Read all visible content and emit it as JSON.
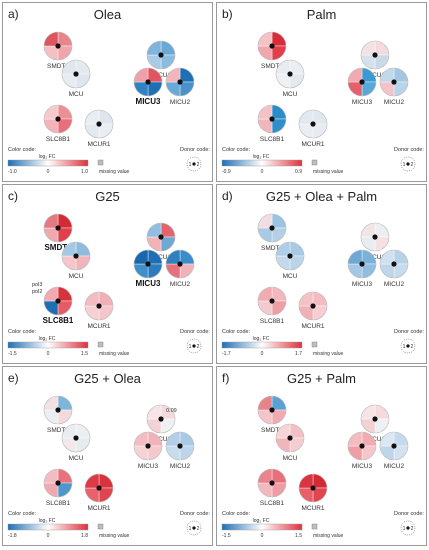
{
  "colors": {
    "red": "#e0303c",
    "blue": "#1f6fb4",
    "frame": "#9a9a9a"
  },
  "legend_text": {
    "color_code": "Color code:",
    "log2fc": "log₂ FC",
    "missing": "missing value",
    "donor_code": "Donor code:"
  },
  "panels": [
    {
      "letter": "a)",
      "title": "Olea",
      "scale": [
        "-1.0",
        "0",
        "1.0"
      ],
      "donor_labels": [
        "1",
        "2"
      ],
      "nodes": [
        {
          "name": "SMDT1",
          "bold": false,
          "colors": [
            "#e9868c",
            "#f0a5ab",
            "#f5c0c4",
            "#dd5560"
          ],
          "annotations": []
        },
        {
          "name": "MCU",
          "bold": false,
          "colors": [
            "#e3e9ef",
            "#dde5ee",
            "#e6ecf2",
            "#e0e7ef"
          ],
          "annotations": []
        },
        {
          "name": "MICU1",
          "bold": false,
          "colors": [
            "#6aa9d6",
            "#8bbbde",
            "#a9cbe6",
            "#7fb4db"
          ],
          "annotations": []
        },
        {
          "name": "MICU3",
          "bold": true,
          "colors": [
            "#e05560",
            "#1f6fb4",
            "#2f82c4",
            "#f0a0a8"
          ],
          "annotations": []
        },
        {
          "name": "MICU2",
          "bold": false,
          "colors": [
            "#1f6fb4",
            "#4a92cc",
            "#6aa9d6",
            "#f3b4bb"
          ],
          "annotations": []
        },
        {
          "name": "SLC8B1",
          "bold": false,
          "colors": [
            "#ed8f97",
            "#e9707a",
            "#f3b3b9",
            "#f6c9cd"
          ],
          "annotations": []
        },
        {
          "name": "MCUR1",
          "bold": false,
          "colors": [
            "#dde6ef",
            "#e9eef3",
            "#e3e9f0",
            "#e8eef4"
          ],
          "annotations": []
        }
      ]
    },
    {
      "letter": "b)",
      "title": "Palm",
      "scale": [
        "-0.9",
        "0",
        "0.9"
      ],
      "donor_labels": [
        "1",
        "2"
      ],
      "nodes": [
        {
          "name": "SMDT1",
          "bold": false,
          "colors": [
            "#d82d38",
            "#e23f4a",
            "#f2a6ad",
            "#f5c2c6"
          ],
          "annotations": []
        },
        {
          "name": "MCU",
          "bold": false,
          "colors": [
            "#e9eef3",
            "#e3e9f0",
            "#eef1f4",
            "#e6ecf2"
          ],
          "annotations": []
        },
        {
          "name": "MICU1",
          "bold": false,
          "colors": [
            "#f5dadd",
            "#c9d9e8",
            "#d5e2ee",
            "#f2e2e4"
          ],
          "annotations": []
        },
        {
          "name": "MICU3",
          "bold": false,
          "colors": [
            "#3c9ad0",
            "#55a8d8",
            "#e5606a",
            "#f2aab0"
          ],
          "annotations": []
        },
        {
          "name": "MICU2",
          "bold": false,
          "colors": [
            "#a5c6e2",
            "#b9d3e8",
            "#f3c3c8",
            "#c2d8eb"
          ],
          "annotations": []
        },
        {
          "name": "SLC8B1",
          "bold": false,
          "colors": [
            "#2a8cc8",
            "#2f8fca",
            "#f0b6bc",
            "#f3c2c7"
          ],
          "annotations": []
        },
        {
          "name": "MCUR1",
          "bold": false,
          "colors": [
            "#dfe7ef",
            "#e6ecf2",
            "#eaeef3",
            "#e2e9f0"
          ],
          "annotations": []
        }
      ]
    },
    {
      "letter": "c)",
      "title": "G25",
      "scale": [
        "-1.5",
        "0",
        "1.5"
      ],
      "donor_labels": [
        "1",
        "2"
      ],
      "nodes": [
        {
          "name": "SMDT1",
          "bold": true,
          "colors": [
            "#d42a35",
            "#e0404b",
            "#f1a9b0",
            "#e27a83"
          ],
          "annotations": []
        },
        {
          "name": "MCU",
          "bold": false,
          "colors": [
            "#8fbbde",
            "#f0b4ba",
            "#f4c6ca",
            "#a5c9e4"
          ],
          "annotations": []
        },
        {
          "name": "MICU1",
          "bold": false,
          "colors": [
            "#e5636d",
            "#6ea8d4",
            "#f2b2b8",
            "#92bde0"
          ],
          "annotations": []
        },
        {
          "name": "MICU3",
          "bold": true,
          "colors": [
            "#1f6fb4",
            "#2a7cbd",
            "#3e8fca",
            "#1a67ad"
          ],
          "annotations": []
        },
        {
          "name": "MICU2",
          "bold": false,
          "colors": [
            "#3a8ccc",
            "#f0b3b9",
            "#e5727b",
            "#2f7fc1"
          ],
          "annotations": []
        },
        {
          "name": "SLC8B1",
          "bold": true,
          "colors": [
            "#d8323d",
            "#e45c66",
            "#1f6fb4",
            "#f2a9b0"
          ],
          "annotations": [
            "pol3",
            "pol2"
          ]
        },
        {
          "name": "MCUR1",
          "bold": false,
          "colors": [
            "#f0b0b6",
            "#f4c5ca",
            "#f6d0d3",
            "#f2bcc1"
          ],
          "annotations": []
        }
      ]
    },
    {
      "letter": "d)",
      "title": "G25 + Olea + Palm",
      "scale": [
        "-1.7",
        "0",
        "1.7"
      ],
      "donor_labels": [
        "1",
        "2"
      ],
      "nodes": [
        {
          "name": "SMDT1",
          "bold": false,
          "colors": [
            "#9cc3e2",
            "#b4d0e8",
            "#a8cae5",
            "#f2dde0"
          ],
          "annotations": []
        },
        {
          "name": "MCU",
          "bold": false,
          "colors": [
            "#a9cae5",
            "#bad4ea",
            "#c4daec",
            "#b0cde7"
          ],
          "annotations": []
        },
        {
          "name": "MICU1",
          "bold": false,
          "colors": [
            "#eceff2",
            "#f5e0e2",
            "#e8edf2",
            "#f0e6e8"
          ],
          "annotations": []
        },
        {
          "name": "MICU3",
          "bold": false,
          "colors": [
            "#7bb2da",
            "#8fbddf",
            "#a4c8e4",
            "#6ea9d5"
          ],
          "annotations": []
        },
        {
          "name": "MICU2",
          "bold": false,
          "colors": [
            "#b6d1e8",
            "#c6dbec",
            "#bed6ea",
            "#cfe0ee"
          ],
          "annotations": []
        },
        {
          "name": "SLC8B1",
          "bold": false,
          "colors": [
            "#f2b8bd",
            "#ee9ea5",
            "#f5cacd",
            "#f0acb2"
          ],
          "annotations": []
        },
        {
          "name": "MCUR1",
          "bold": false,
          "colors": [
            "#f3bcc1",
            "#f6cdd0",
            "#f0b0b6",
            "#f4c2c6"
          ],
          "annotations": []
        }
      ]
    },
    {
      "letter": "e)",
      "title": "G25 + Olea",
      "scale": [
        "-1.8",
        "0",
        "1.8"
      ],
      "donor_labels": [
        "1",
        "2"
      ],
      "nodes": [
        {
          "name": "SMDT1",
          "bold": false,
          "colors": [
            "#7fb4db",
            "#f5dadd",
            "#eaeef3",
            "#f2e1e3"
          ],
          "annotations": []
        },
        {
          "name": "MCU",
          "bold": false,
          "colors": [
            "#eceff2",
            "#e6ebf0",
            "#f2e8ea",
            "#e9edf2"
          ],
          "annotations": []
        },
        {
          "name": "MICU1",
          "bold": false,
          "colors": [
            "#f5dadd",
            "#eef1f4",
            "#f3d2d5",
            "#f7e4e6"
          ],
          "annotations": [
            "0.09"
          ]
        },
        {
          "name": "MICU3",
          "bold": false,
          "colors": [
            "#f1b3b9",
            "#f4c8cc",
            "#f6d2d5",
            "#f3bec3"
          ],
          "annotations": []
        },
        {
          "name": "MICU2",
          "bold": false,
          "colors": [
            "#a9cae5",
            "#bcd5ea",
            "#c7dcec",
            "#b3cfe7"
          ],
          "annotations": []
        },
        {
          "name": "SLC8B1",
          "bold": false,
          "colors": [
            "#e8727b",
            "#4e96cd",
            "#f0a9b0",
            "#f3bcc1"
          ],
          "annotations": []
        },
        {
          "name": "MCUR1",
          "bold": false,
          "colors": [
            "#d8323d",
            "#e0444f",
            "#e7626c",
            "#dc3a45"
          ],
          "annotations": []
        }
      ]
    },
    {
      "letter": "f)",
      "title": "G25 + Palm",
      "scale": [
        "-1.5",
        "0",
        "1.5"
      ],
      "donor_labels": [
        "1",
        "2"
      ],
      "nodes": [
        {
          "name": "SMDT1",
          "bold": false,
          "colors": [
            "#5aa0d2",
            "#f0aab0",
            "#f4c4c8",
            "#e6838b"
          ],
          "annotations": []
        },
        {
          "name": "MCU",
          "bold": false,
          "colors": [
            "#f3c0c5",
            "#f5cdd0",
            "#f1b6bc",
            "#f6d4d7"
          ],
          "annotations": []
        },
        {
          "name": "MICU1",
          "bold": false,
          "colors": [
            "#f5dadd",
            "#eef1f4",
            "#f3d2d5",
            "#f7e4e6"
          ],
          "annotations": []
        },
        {
          "name": "MICU3",
          "bold": false,
          "colors": [
            "#f0acb2",
            "#f4c6ca",
            "#ee9ea5",
            "#f3bcc1"
          ],
          "annotations": []
        },
        {
          "name": "MICU2",
          "bold": false,
          "colors": [
            "#c5daec",
            "#d2e2ef",
            "#bfd6ea",
            "#dbe7f1"
          ],
          "annotations": []
        },
        {
          "name": "SLC8B1",
          "bold": false,
          "colors": [
            "#e6717a",
            "#ef9ca3",
            "#f3b8bd",
            "#e9848c"
          ],
          "annotations": []
        },
        {
          "name": "MCUR1",
          "bold": false,
          "colors": [
            "#d42a35",
            "#df4650",
            "#e85f69",
            "#d9343f"
          ],
          "annotations": []
        }
      ]
    }
  ]
}
